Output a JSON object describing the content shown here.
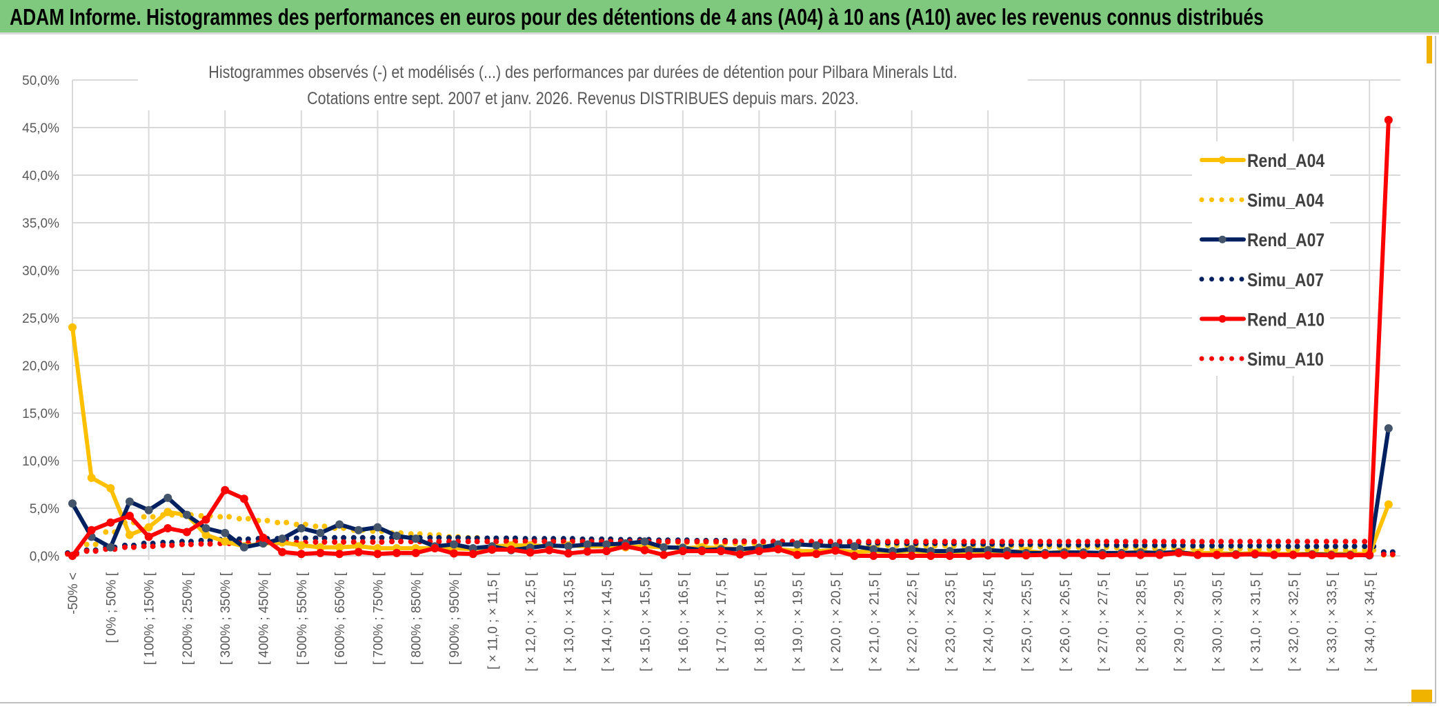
{
  "header": {
    "title": "ADAM Informe. Histogrammes des performances en euros pour des détentions de 4 ans (A04) à 10 ans (A10) avec les revenus connus distribués"
  },
  "chart_data": {
    "type": "line",
    "title": "Histogrammes observés (-) et modélisés (...) des performances par durées de détention pour Pilbara Minerals Ltd.",
    "subtitle": "Cotations entre sept. 2007 et janv. 2026. Revenus DISTRIBUES depuis mars. 2023.",
    "xlabel": "",
    "ylabel": "",
    "ylim": [
      0,
      50
    ],
    "y_ticks": [
      "0,0%",
      "5,0%",
      "10,0%",
      "15,0%",
      "20,0%",
      "25,0%",
      "30,0%",
      "35,0%",
      "40,0%",
      "45,0%",
      "50,0%"
    ],
    "n_categories": 70,
    "tick_labels_every": 2,
    "tick_labels": [
      "-50% <",
      "[ 0% ; 50% [",
      "[ 100% ; 150% [",
      "[ 200% ; 250% [",
      "[ 300% ; 350% [",
      "[ 400% ; 450% [",
      "[ 500% ; 550% [",
      "[ 600% ; 650% [",
      "[ 700% ; 750% [",
      "[ 800% ; 850% [",
      "[ 900% ; 950% [",
      "[ × 11,0 ; × 11,5 [",
      "[ × 12,0 ; × 12,5 [",
      "[ × 13,0 ; × 13,5 [",
      "[ × 14,0 ; × 14,5 [",
      "[ × 15,0 ; × 15,5 [",
      "[ × 16,0 ; × 16,5 [",
      "[ × 17,0 ; × 17,5 [",
      "[ × 18,0 ; × 18,5 [",
      "[ × 19,0 ; × 19,5 [",
      "[ × 20,0 ; × 20,5 [",
      "[ × 21,0 ; × 21,5 [",
      "[ × 22,0 ; × 22,5 [",
      "[ × 23,0 ; × 23,5 [",
      "[ × 24,0 ; × 24,5 [",
      "[ × 25,0 ; × 25,5 [",
      "[ × 26,0 ; × 26,5 [",
      "[ × 27,0 ; × 27,5 [",
      "[ × 28,0 ; × 28,5 [",
      "[ × 29,0 ; × 29,5 [",
      "[ × 30,0 ; × 30,5 [",
      "[ × 31,0 ; × 31,5 [",
      "[ × 32,0 ; × 32,5 [",
      "[ × 33,0 ; × 33,5 [",
      "[ × 34,0 ; × 34,5 ["
    ],
    "grid": true,
    "legend_position": "right",
    "series": [
      {
        "name": "Rend_A04",
        "style": "solid",
        "color": "#FFC000",
        "marker_color": "#FFC000",
        "values": [
          24.0,
          8.2,
          7.1,
          2.2,
          3.0,
          4.6,
          4.3,
          2.2,
          1.5,
          1.0,
          1.3,
          1.4,
          1.1,
          0.9,
          0.9,
          1.0,
          0.8,
          0.8,
          0.8,
          0.8,
          0.8,
          0.7,
          1.0,
          1.1,
          1.1,
          1.0,
          1.1,
          1.0,
          1.0,
          0.9,
          1.0,
          0.9,
          0.8,
          0.9,
          0.8,
          0.7,
          0.6,
          0.7,
          0.5,
          0.5,
          0.6,
          0.4,
          0.5,
          0.4,
          0.5,
          0.4,
          0.3,
          0.4,
          0.3,
          0.4,
          0.5,
          0.3,
          0.4,
          0.3,
          0.3,
          0.3,
          0.4,
          0.3,
          0.3,
          0.3,
          0.3,
          0.2,
          0.3,
          0.2,
          0.2,
          0.2,
          0.2,
          0.2,
          0.2,
          5.4
        ]
      },
      {
        "name": "Simu_A04",
        "style": "dotted",
        "color": "#FFC000",
        "values": [
          0.2,
          1.2,
          2.5,
          3.5,
          4.1,
          4.3,
          4.3,
          4.2,
          4.1,
          3.9,
          3.7,
          3.5,
          3.3,
          3.1,
          2.9,
          2.7,
          2.6,
          2.4,
          2.3,
          2.2,
          2.0,
          1.9,
          1.8,
          1.75,
          1.7,
          1.65,
          1.6,
          1.6,
          1.55,
          1.5,
          1.5,
          1.45,
          1.4,
          1.4,
          1.35,
          1.3,
          1.3,
          1.25,
          1.25,
          1.2,
          1.2,
          1.15,
          1.15,
          1.1,
          1.1,
          1.05,
          1.05,
          1.0,
          1.0,
          1.0,
          0.95,
          0.95,
          0.9,
          0.9,
          0.9,
          0.85,
          0.85,
          0.8,
          0.8,
          0.8,
          0.75,
          0.75,
          0.7,
          0.7,
          0.7,
          0.65,
          0.65,
          0.6,
          0.6,
          0.1
        ]
      },
      {
        "name": "Rend_A07",
        "style": "solid",
        "color": "#002060",
        "marker_color": "#44546A",
        "values": [
          5.5,
          2.0,
          0.9,
          5.7,
          4.8,
          6.1,
          4.3,
          2.9,
          2.4,
          0.9,
          1.3,
          1.8,
          2.9,
          2.4,
          3.3,
          2.7,
          3.0,
          2.1,
          1.8,
          1.0,
          1.2,
          0.8,
          1.0,
          0.6,
          0.85,
          1.1,
          1.0,
          1.2,
          1.2,
          1.3,
          1.5,
          0.9,
          0.85,
          0.6,
          0.7,
          0.7,
          0.85,
          1.2,
          1.2,
          1.1,
          1.0,
          1.0,
          0.7,
          0.5,
          0.7,
          0.5,
          0.5,
          0.6,
          0.6,
          0.5,
          0.3,
          0.3,
          0.35,
          0.35,
          0.3,
          0.3,
          0.35,
          0.3,
          0.4,
          0.1,
          0.1,
          0.15,
          0.15,
          0.1,
          0.1,
          0.15,
          0.1,
          0.1,
          0.05,
          13.4
        ]
      },
      {
        "name": "Simu_A07",
        "style": "dotted",
        "color": "#002060",
        "values": [
          0.3,
          0.6,
          0.9,
          1.1,
          1.3,
          1.4,
          1.5,
          1.6,
          1.7,
          1.75,
          1.8,
          1.8,
          1.85,
          1.85,
          1.9,
          1.9,
          1.9,
          1.9,
          1.9,
          1.9,
          1.9,
          1.85,
          1.85,
          1.85,
          1.8,
          1.8,
          1.8,
          1.75,
          1.75,
          1.7,
          1.7,
          1.65,
          1.65,
          1.6,
          1.6,
          1.55,
          1.5,
          1.5,
          1.45,
          1.45,
          1.4,
          1.4,
          1.35,
          1.35,
          1.3,
          1.3,
          1.3,
          1.25,
          1.25,
          1.2,
          1.2,
          1.2,
          1.15,
          1.15,
          1.15,
          1.1,
          1.1,
          1.1,
          1.1,
          1.05,
          1.05,
          1.05,
          1.05,
          1.05,
          1.0,
          1.0,
          1.0,
          1.0,
          1.0,
          0.4
        ]
      },
      {
        "name": "Rend_A10",
        "style": "solid",
        "color": "#FF0000",
        "marker_color": "#FF0000",
        "values": [
          0.0,
          2.7,
          3.5,
          4.2,
          2.0,
          2.9,
          2.5,
          3.8,
          6.9,
          6.0,
          1.9,
          0.4,
          0.2,
          0.3,
          0.2,
          0.4,
          0.2,
          0.3,
          0.3,
          0.8,
          0.25,
          0.2,
          0.65,
          0.65,
          0.35,
          0.6,
          0.25,
          0.45,
          0.5,
          1.0,
          0.6,
          0.1,
          0.5,
          0.5,
          0.5,
          0.15,
          0.5,
          0.7,
          0.1,
          0.2,
          0.55,
          0.0,
          0.0,
          0.0,
          0.0,
          0.0,
          0.0,
          0.0,
          0.05,
          0.05,
          0.05,
          0.1,
          0.1,
          0.1,
          0.05,
          0.1,
          0.1,
          0.1,
          0.3,
          0.1,
          0.1,
          0.1,
          0.2,
          0.1,
          0.1,
          0.1,
          0.05,
          0.05,
          0.1,
          45.8
        ]
      },
      {
        "name": "Simu_A10",
        "style": "dotted",
        "color": "#FF0000",
        "values": [
          0.2,
          0.5,
          0.7,
          0.9,
          1.0,
          1.1,
          1.2,
          1.25,
          1.3,
          1.35,
          1.4,
          1.4,
          1.4,
          1.45,
          1.45,
          1.45,
          1.45,
          1.5,
          1.5,
          1.5,
          1.5,
          1.5,
          1.5,
          1.5,
          1.5,
          1.5,
          1.5,
          1.5,
          1.5,
          1.5,
          1.5,
          1.5,
          1.5,
          1.5,
          1.5,
          1.5,
          1.5,
          1.5,
          1.5,
          1.5,
          1.5,
          1.5,
          1.5,
          1.5,
          1.5,
          1.5,
          1.5,
          1.5,
          1.5,
          1.5,
          1.5,
          1.5,
          1.5,
          1.5,
          1.5,
          1.5,
          1.5,
          1.5,
          1.5,
          1.5,
          1.5,
          1.5,
          1.5,
          1.5,
          1.5,
          1.5,
          1.5,
          1.5,
          1.5,
          0.15
        ]
      }
    ]
  }
}
